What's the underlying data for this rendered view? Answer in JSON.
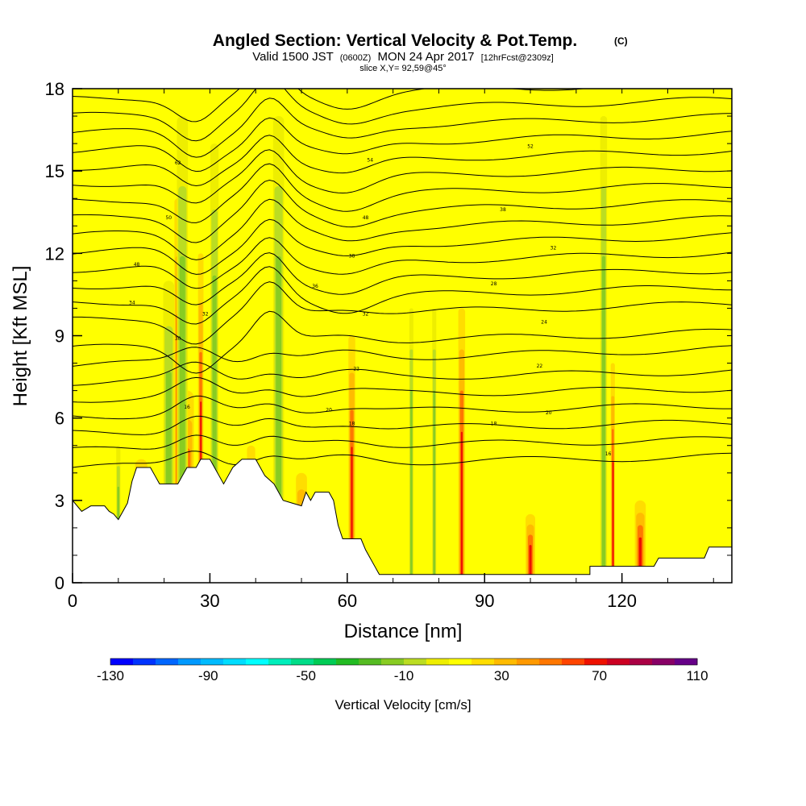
{
  "header": {
    "title": "Angled Section: Vertical Velocity & Pot.Temp.",
    "title_unit": "(C)",
    "valid_prefix": "Valid 1500 JST",
    "valid_utc": "(0600Z)",
    "valid_date": "MON 24 Apr 2017",
    "forecast": "[12hrFcst@2309z]",
    "slice": "slice X,Y= 92,59@45°"
  },
  "chart_data": {
    "type": "heatmap",
    "title": "Angled Section: Vertical Velocity & Pot.Temp.",
    "xlabel": "Distance [nm]",
    "ylabel": "Height [Kft MSL]",
    "xlim": [
      0,
      144
    ],
    "ylim": [
      0,
      18
    ],
    "x_ticks": [
      0,
      30,
      60,
      90,
      120
    ],
    "x_tick_labels": [
      "0",
      "30",
      "60",
      "90",
      "120"
    ],
    "y_ticks": [
      0,
      3,
      6,
      9,
      12,
      15,
      18
    ],
    "y_tick_labels": [
      "0",
      "3",
      "6",
      "9",
      "12",
      "15",
      "18"
    ],
    "colorbar": {
      "label": "Vertical Velocity [cm/s]",
      "min": -130,
      "max": 110,
      "step": 10,
      "tick_values": [
        -130,
        -90,
        -50,
        -10,
        30,
        70,
        110
      ],
      "tick_labels": [
        "-130",
        "-90",
        "-50",
        "-10",
        "30",
        "70",
        "110"
      ],
      "colors": [
        "#0000ff",
        "#0033ff",
        "#0066ff",
        "#0099ff",
        "#00bbff",
        "#00ddff",
        "#00ffff",
        "#00eebb",
        "#00dd88",
        "#00cc55",
        "#22bb22",
        "#55bb22",
        "#88cc22",
        "#bbdd22",
        "#eeee00",
        "#ffff00",
        "#ffdd00",
        "#ffbb00",
        "#ff9900",
        "#ff7700",
        "#ff4400",
        "#ee1100",
        "#cc0022",
        "#aa0044",
        "#880066",
        "#660088"
      ]
    },
    "terrain": [
      [
        0,
        3.0
      ],
      [
        2,
        2.6
      ],
      [
        4,
        2.8
      ],
      [
        7,
        2.8
      ],
      [
        8,
        2.6
      ],
      [
        9,
        2.5
      ],
      [
        10,
        2.3
      ],
      [
        11,
        2.6
      ],
      [
        12,
        2.9
      ],
      [
        13,
        3.7
      ],
      [
        14,
        4.2
      ],
      [
        17,
        4.2
      ],
      [
        18,
        3.9
      ],
      [
        19,
        3.6
      ],
      [
        23,
        3.6
      ],
      [
        24,
        3.9
      ],
      [
        25,
        4.2
      ],
      [
        27,
        4.2
      ],
      [
        28,
        4.5
      ],
      [
        30,
        4.5
      ],
      [
        31,
        4.2
      ],
      [
        32,
        3.9
      ],
      [
        33,
        3.6
      ],
      [
        34,
        3.9
      ],
      [
        35,
        4.2
      ],
      [
        37,
        4.5
      ],
      [
        40,
        4.5
      ],
      [
        41,
        4.2
      ],
      [
        42,
        3.9
      ],
      [
        44,
        3.6
      ],
      [
        45,
        3.3
      ],
      [
        46,
        3.0
      ],
      [
        48,
        2.9
      ],
      [
        50,
        2.8
      ],
      [
        51,
        3.3
      ],
      [
        52,
        3.0
      ],
      [
        53,
        3.3
      ],
      [
        56,
        3.3
      ],
      [
        57,
        3.0
      ],
      [
        58,
        2.1
      ],
      [
        59,
        1.6
      ],
      [
        63,
        1.6
      ],
      [
        64,
        1.2
      ],
      [
        65,
        0.9
      ],
      [
        66,
        0.6
      ],
      [
        67,
        0.3
      ],
      [
        113,
        0.3
      ],
      [
        113,
        0.6
      ],
      [
        127,
        0.6
      ],
      [
        128,
        0.9
      ],
      [
        138,
        0.9
      ],
      [
        139,
        1.3
      ],
      [
        144,
        1.3
      ]
    ],
    "updraft_columns": [
      [
        15,
        0.9,
        4.5
      ],
      [
        25,
        1.0,
        7
      ],
      [
        39,
        0.6,
        5
      ],
      [
        50,
        0.8,
        4
      ],
      [
        100,
        0.7,
        2.5
      ],
      [
        124,
        0.8,
        3
      ],
      [
        23,
        0.5,
        14
      ],
      [
        28,
        0.4,
        12
      ],
      [
        85,
        0.5,
        10
      ],
      [
        118,
        0.3,
        8
      ],
      [
        61,
        0.5,
        9
      ]
    ],
    "downdraft_columns": [
      [
        21,
        0.8,
        11
      ],
      [
        24,
        0.8,
        17
      ],
      [
        31,
        0.6,
        16
      ],
      [
        45,
        0.8,
        17
      ],
      [
        10,
        0.3,
        5
      ],
      [
        116,
        0.5,
        17
      ],
      [
        74,
        0.3,
        10
      ],
      [
        79,
        0.3,
        10
      ]
    ],
    "isentrope_labels": [
      {
        "x": 23,
        "y": 15.3,
        "text": "62"
      },
      {
        "x": 65,
        "y": 15.4,
        "text": "54"
      },
      {
        "x": 100,
        "y": 15.9,
        "text": "52"
      },
      {
        "x": 21,
        "y": 13.3,
        "text": "50"
      },
      {
        "x": 64,
        "y": 13.3,
        "text": "48"
      },
      {
        "x": 94,
        "y": 13.6,
        "text": "38"
      },
      {
        "x": 14,
        "y": 11.6,
        "text": "48"
      },
      {
        "x": 61,
        "y": 11.9,
        "text": "38"
      },
      {
        "x": 105,
        "y": 12.2,
        "text": "32"
      },
      {
        "x": 13,
        "y": 10.2,
        "text": "34"
      },
      {
        "x": 53,
        "y": 10.8,
        "text": "36"
      },
      {
        "x": 92,
        "y": 10.9,
        "text": "28"
      },
      {
        "x": 29,
        "y": 9.8,
        "text": "32"
      },
      {
        "x": 64,
        "y": 9.8,
        "text": "32"
      },
      {
        "x": 23,
        "y": 8.9,
        "text": "30"
      },
      {
        "x": 103,
        "y": 9.5,
        "text": "24"
      },
      {
        "x": 62,
        "y": 7.8,
        "text": "22"
      },
      {
        "x": 102,
        "y": 7.9,
        "text": "22"
      },
      {
        "x": 56,
        "y": 6.3,
        "text": "20"
      },
      {
        "x": 104,
        "y": 6.2,
        "text": "20"
      },
      {
        "x": 61,
        "y": 5.8,
        "text": "18"
      },
      {
        "x": 92,
        "y": 5.8,
        "text": "18"
      },
      {
        "x": 25,
        "y": 6.4,
        "text": "16"
      },
      {
        "x": 117,
        "y": 4.7,
        "text": "16"
      }
    ]
  }
}
